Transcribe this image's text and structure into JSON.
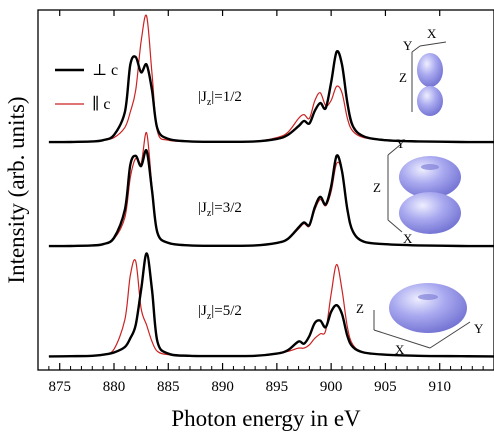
{
  "chart_data": {
    "type": "line",
    "xlabel": "Photon energy in eV",
    "ylabel": "Intensity (arb. units)",
    "xlim": [
      873,
      915
    ],
    "xticks": [
      875,
      880,
      885,
      890,
      895,
      900,
      905,
      910
    ],
    "xtick_labels": [
      "875",
      "880",
      "885",
      "890",
      "895",
      "900",
      "905",
      "910"
    ],
    "grid": false,
    "legend": {
      "placement": "top-left",
      "entries": [
        {
          "label": "⊥ c",
          "color": "#000000"
        },
        {
          "label": "∥ c",
          "color": "#cc2222"
        }
      ]
    },
    "series_colors": {
      "perp": "#000000",
      "par": "#cc2222"
    },
    "panels": [
      {
        "label_main": "|J",
        "label_sub": "z",
        "label_rest": "|=1/2",
        "orbital_axes": [
          "Y",
          "X",
          "Z"
        ],
        "series": [
          {
            "key": "perp",
            "x": [
              874,
              876,
              878,
              879,
              880,
              881,
              881.5,
              882,
              882.5,
              883,
              883.5,
              884,
              885,
              887,
              890,
              893,
              895,
              896,
              897,
              897.5,
              898,
              898.5,
              899,
              899.5,
              900,
              900.5,
              901,
              901.5,
              902,
              903,
              905,
              908,
              912,
              915
            ],
            "y": [
              0.015,
              0.016,
              0.02,
              0.03,
              0.07,
              0.25,
              0.62,
              0.68,
              0.56,
              0.62,
              0.42,
              0.12,
              0.04,
              0.02,
              0.017,
              0.02,
              0.04,
              0.07,
              0.14,
              0.18,
              0.16,
              0.26,
              0.32,
              0.28,
              0.48,
              0.72,
              0.62,
              0.32,
              0.14,
              0.06,
              0.03,
              0.02,
              0.016,
              0.015
            ]
          },
          {
            "key": "par",
            "x": [
              874,
              876,
              878,
              879,
              880,
              881,
              881.5,
              882,
              882.5,
              883,
              883.5,
              884,
              885,
              887,
              890,
              893,
              895,
              896,
              897,
              897.5,
              898,
              898.5,
              899,
              899.5,
              900,
              900.5,
              901,
              901.5,
              902,
              903,
              905,
              908,
              912,
              915
            ],
            "y": [
              0.015,
              0.016,
              0.02,
              0.03,
              0.05,
              0.13,
              0.25,
              0.42,
              0.8,
              1.0,
              0.55,
              0.1,
              0.03,
              0.02,
              0.017,
              0.02,
              0.05,
              0.09,
              0.2,
              0.23,
              0.2,
              0.34,
              0.4,
              0.3,
              0.34,
              0.45,
              0.4,
              0.2,
              0.1,
              0.05,
              0.03,
              0.02,
              0.016,
              0.015
            ]
          }
        ]
      },
      {
        "label_main": "|J",
        "label_sub": "z",
        "label_rest": "|=3/2",
        "orbital_axes": [
          "Y",
          "Z",
          "X"
        ],
        "series": [
          {
            "key": "perp",
            "x": [
              874,
              876,
              878,
              879,
              880,
              881,
              881.5,
              882,
              882.5,
              883,
              883.5,
              884,
              885,
              887,
              890,
              893,
              895,
              896,
              897,
              897.5,
              898,
              898.5,
              899,
              899.5,
              900,
              900.5,
              901,
              901.5,
              902,
              903,
              905,
              908,
              912,
              915
            ],
            "y": [
              0.015,
              0.016,
              0.02,
              0.03,
              0.08,
              0.3,
              0.65,
              0.72,
              0.64,
              0.76,
              0.45,
              0.12,
              0.04,
              0.02,
              0.017,
              0.02,
              0.04,
              0.07,
              0.16,
              0.2,
              0.18,
              0.32,
              0.4,
              0.34,
              0.48,
              0.72,
              0.6,
              0.3,
              0.13,
              0.05,
              0.03,
              0.02,
              0.016,
              0.015
            ]
          },
          {
            "key": "par",
            "x": [
              874,
              876,
              878,
              879,
              880,
              881,
              881.5,
              882,
              882.5,
              883,
              883.5,
              884,
              885,
              887,
              890,
              893,
              895,
              896,
              897,
              897.5,
              898,
              898.5,
              899,
              899.5,
              900,
              900.5,
              901,
              901.5,
              902,
              903,
              905,
              908,
              912,
              915
            ],
            "y": [
              0.015,
              0.016,
              0.02,
              0.03,
              0.07,
              0.24,
              0.55,
              0.7,
              0.66,
              0.9,
              0.48,
              0.12,
              0.04,
              0.02,
              0.017,
              0.02,
              0.04,
              0.07,
              0.15,
              0.19,
              0.17,
              0.3,
              0.38,
              0.33,
              0.44,
              0.66,
              0.6,
              0.3,
              0.13,
              0.05,
              0.03,
              0.02,
              0.016,
              0.015
            ]
          }
        ]
      },
      {
        "label_main": "|J",
        "label_sub": "z",
        "label_rest": "|=5/2",
        "orbital_axes": [
          "Z",
          "Y",
          "X"
        ],
        "series": [
          {
            "key": "perp",
            "x": [
              874,
              876,
              878,
              879,
              880,
              881,
              881.5,
              882,
              882.5,
              883,
              883.5,
              884,
              885,
              887,
              890,
              893,
              895,
              896,
              897,
              897.5,
              898,
              898.5,
              899,
              899.5,
              900,
              900.5,
              901,
              901.5,
              902,
              903,
              905,
              908,
              912,
              915
            ],
            "y": [
              0.015,
              0.016,
              0.02,
              0.03,
              0.05,
              0.1,
              0.18,
              0.3,
              0.62,
              0.95,
              0.62,
              0.15,
              0.04,
              0.02,
              0.017,
              0.02,
              0.04,
              0.07,
              0.15,
              0.13,
              0.2,
              0.32,
              0.34,
              0.28,
              0.42,
              0.48,
              0.4,
              0.2,
              0.1,
              0.05,
              0.03,
              0.02,
              0.016,
              0.015
            ]
          },
          {
            "key": "par",
            "x": [
              874,
              876,
              878,
              879,
              880,
              881,
              881.5,
              882,
              882.5,
              883,
              883.5,
              884,
              885,
              887,
              890,
              893,
              895,
              896,
              897,
              897.5,
              898,
              898.5,
              899,
              899.5,
              900,
              900.5,
              901,
              901.5,
              902,
              903,
              905,
              908,
              912,
              915
            ],
            "y": [
              0.015,
              0.016,
              0.02,
              0.03,
              0.08,
              0.35,
              0.75,
              0.88,
              0.45,
              0.3,
              0.15,
              0.06,
              0.03,
              0.02,
              0.017,
              0.02,
              0.04,
              0.06,
              0.09,
              0.09,
              0.12,
              0.18,
              0.22,
              0.25,
              0.58,
              0.85,
              0.62,
              0.28,
              0.12,
              0.05,
              0.03,
              0.02,
              0.016,
              0.015
            ]
          }
        ]
      }
    ]
  }
}
